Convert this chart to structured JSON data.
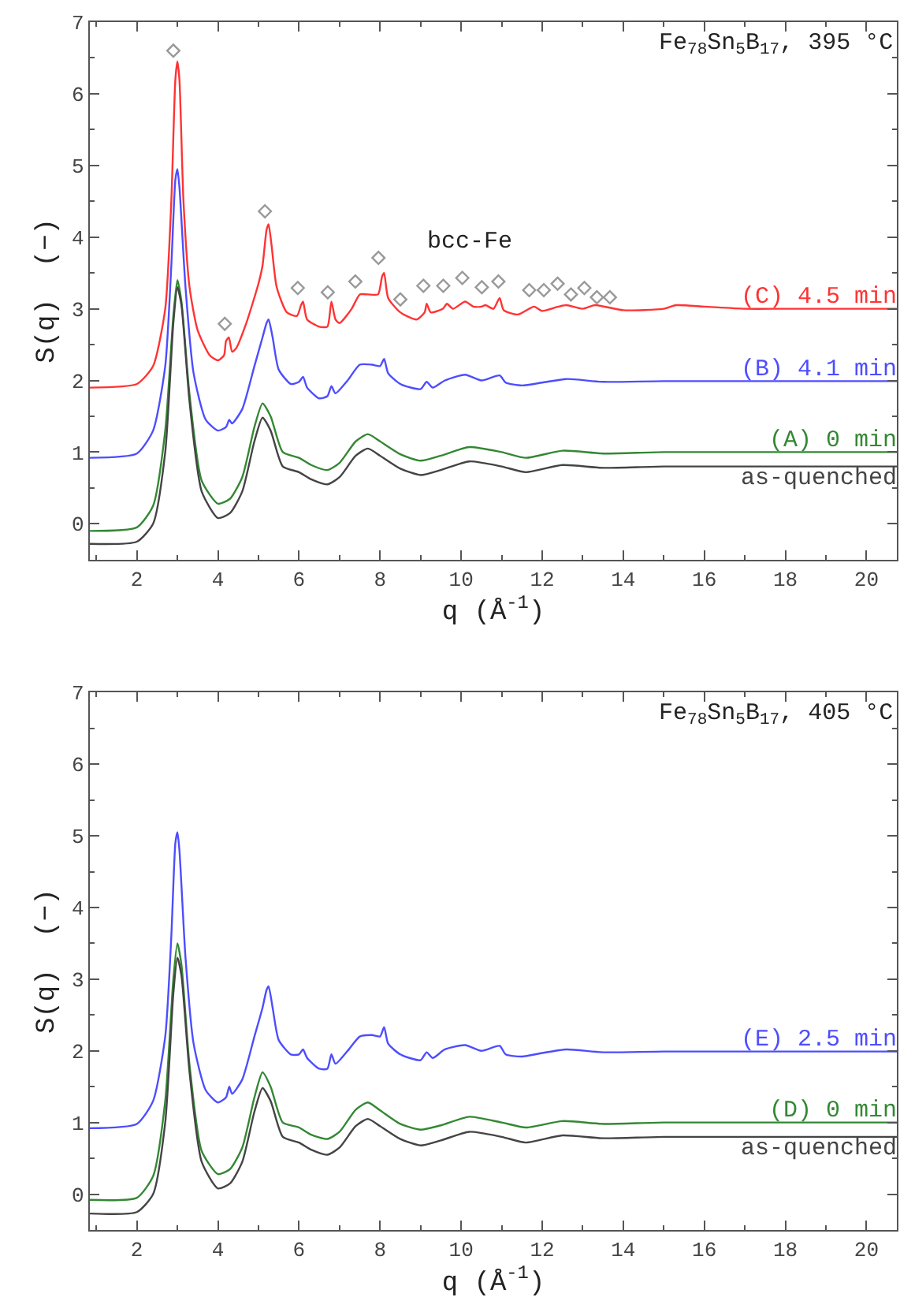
{
  "chart_data": [
    {
      "type": "line",
      "title": "Fe$_{78}$Sn$_{5}$B$_{17}$, 395 °C",
      "xlabel": "q (Å$^{-1}$)",
      "ylabel": "S(q)  (−)",
      "xlim": [
        0.84,
        20.75
      ],
      "ylim": [
        -0.5,
        7
      ],
      "xticks": [
        2,
        4,
        6,
        8,
        10,
        12,
        14,
        16,
        18,
        20
      ],
      "yticks": [
        0,
        1,
        2,
        3,
        4,
        5,
        6,
        7
      ],
      "legend": "right",
      "marker": "none",
      "line_style": "solid",
      "annotations": [
        "bcc-Fe"
      ],
      "series": [
        {
          "name": "(C) 4.5 min",
          "color": "#ff3333",
          "x": [
            0.84,
            2.0,
            2.4,
            2.7,
            2.85,
            2.95,
            3.0,
            3.05,
            3.15,
            3.3,
            3.5,
            3.8,
            4.0,
            4.15,
            4.2,
            4.27,
            4.35,
            4.45,
            4.7,
            5.0,
            5.1,
            5.2,
            5.25,
            5.32,
            5.45,
            5.7,
            5.95,
            6.05,
            6.1,
            6.2,
            6.5,
            6.7,
            6.8,
            6.9,
            7.0,
            7.3,
            7.5,
            7.7,
            7.95,
            8.05,
            8.1,
            8.2,
            8.5,
            8.9,
            9.1,
            9.15,
            9.25,
            9.55,
            9.65,
            9.8,
            10.1,
            10.3,
            10.5,
            10.6,
            10.8,
            10.95,
            11.05,
            11.4,
            11.8,
            12.0,
            12.4,
            12.6,
            13.0,
            13.3,
            14.0,
            15.0,
            15.3,
            16.0,
            17.0,
            18.0,
            20.75
          ],
          "values": [
            1.9,
            1.95,
            2.2,
            3.0,
            4.5,
            6.2,
            6.45,
            6.2,
            4.5,
            3.3,
            2.7,
            2.35,
            2.28,
            2.35,
            2.55,
            2.6,
            2.4,
            2.45,
            2.8,
            3.35,
            3.6,
            4.1,
            4.18,
            3.9,
            3.3,
            2.95,
            2.9,
            3.05,
            3.1,
            2.85,
            2.75,
            2.75,
            3.1,
            2.85,
            2.8,
            3.0,
            3.2,
            3.2,
            3.2,
            3.45,
            3.5,
            3.15,
            2.95,
            2.85,
            2.95,
            3.07,
            2.95,
            3.0,
            3.07,
            3.0,
            3.1,
            3.03,
            3.03,
            3.05,
            3.0,
            3.15,
            2.98,
            2.92,
            3.03,
            2.97,
            3.03,
            3.05,
            3.0,
            3.05,
            2.98,
            3.0,
            3.05,
            3.03,
            3.0,
            3.0,
            3.0
          ]
        },
        {
          "name": "(B) 4.1 min",
          "color": "#4d4dff",
          "x": [
            0.84,
            2.0,
            2.4,
            2.7,
            2.85,
            2.95,
            3.0,
            3.05,
            3.2,
            3.4,
            3.7,
            4.0,
            4.2,
            4.28,
            4.35,
            4.6,
            4.9,
            5.1,
            5.2,
            5.25,
            5.35,
            5.5,
            5.8,
            6.0,
            6.1,
            6.2,
            6.5,
            6.7,
            6.8,
            6.9,
            7.2,
            7.5,
            7.8,
            8.0,
            8.1,
            8.2,
            8.5,
            9.0,
            9.15,
            9.3,
            9.6,
            10.1,
            10.5,
            10.95,
            11.1,
            11.5,
            12.0,
            12.6,
            13.5,
            15.0,
            20.75
          ],
          "values": [
            0.92,
            0.98,
            1.3,
            2.2,
            3.6,
            4.8,
            4.95,
            4.7,
            3.3,
            2.1,
            1.45,
            1.3,
            1.35,
            1.45,
            1.4,
            1.6,
            2.2,
            2.6,
            2.8,
            2.85,
            2.6,
            2.15,
            1.95,
            1.98,
            2.05,
            1.9,
            1.75,
            1.78,
            1.92,
            1.82,
            2.0,
            2.22,
            2.22,
            2.2,
            2.3,
            2.1,
            1.95,
            1.88,
            1.98,
            1.9,
            2.0,
            2.08,
            2.0,
            2.07,
            1.97,
            1.93,
            1.97,
            2.02,
            1.98,
            1.99,
            1.99
          ]
        },
        {
          "name": "(A) 0 min",
          "color": "#338833",
          "x": [
            0.84,
            2.0,
            2.4,
            2.7,
            2.9,
            3.0,
            3.1,
            3.3,
            3.6,
            4.0,
            4.3,
            4.6,
            4.9,
            5.1,
            5.3,
            5.6,
            6.0,
            6.3,
            6.7,
            7.0,
            7.4,
            7.7,
            8.0,
            8.5,
            9.0,
            9.5,
            10.2,
            11.0,
            11.6,
            12.5,
            13.5,
            15.0,
            20.75
          ],
          "values": [
            -0.1,
            -0.05,
            0.25,
            1.3,
            2.9,
            3.4,
            3.1,
            1.8,
            0.6,
            0.28,
            0.35,
            0.65,
            1.35,
            1.68,
            1.5,
            1.0,
            0.92,
            0.82,
            0.75,
            0.85,
            1.15,
            1.25,
            1.15,
            0.97,
            0.88,
            0.95,
            1.07,
            1.0,
            0.92,
            1.02,
            0.98,
            1.0,
            1.0
          ]
        },
        {
          "name": "as-quenched",
          "color": "#444444",
          "x": [
            0.84,
            2.0,
            2.4,
            2.7,
            2.9,
            3.0,
            3.1,
            3.3,
            3.6,
            4.0,
            4.3,
            4.6,
            4.9,
            5.1,
            5.3,
            5.6,
            6.0,
            6.3,
            6.7,
            7.0,
            7.4,
            7.7,
            8.0,
            8.5,
            9.0,
            9.5,
            10.2,
            11.0,
            11.6,
            12.5,
            13.5,
            15.0,
            20.75
          ],
          "values": [
            -0.28,
            -0.25,
            0.0,
            1.0,
            2.8,
            3.3,
            3.05,
            1.7,
            0.45,
            0.08,
            0.15,
            0.45,
            1.15,
            1.48,
            1.3,
            0.8,
            0.72,
            0.62,
            0.55,
            0.65,
            0.95,
            1.05,
            0.95,
            0.77,
            0.68,
            0.75,
            0.87,
            0.8,
            0.72,
            0.82,
            0.78,
            0.8,
            0.8
          ]
        },
        {
          "type": "scatter",
          "marker": "diamond",
          "color": "#999999",
          "x": [
            2.9,
            4.17,
            5.16,
            5.97,
            6.71,
            7.39,
            7.96,
            8.5,
            9.07,
            9.56,
            10.03,
            10.51,
            10.92,
            11.68,
            12.04,
            12.38,
            12.71,
            13.04,
            13.35,
            13.67
          ],
          "values": [
            6.6,
            2.79,
            4.36,
            3.29,
            3.23,
            3.38,
            3.71,
            3.13,
            3.32,
            3.32,
            3.43,
            3.3,
            3.38,
            3.26,
            3.26,
            3.35,
            3.2,
            3.29,
            3.16,
            3.16
          ]
        }
      ]
    },
    {
      "type": "line",
      "title": "Fe$_{78}$Sn$_{5}$B$_{17}$, 405 °C",
      "xlabel": "q (Å$^{-1}$)",
      "ylabel": "S(q)  (−)",
      "xlim": [
        0.84,
        20.75
      ],
      "ylim": [
        -0.5,
        7
      ],
      "xticks": [
        2,
        4,
        6,
        8,
        10,
        12,
        14,
        16,
        18,
        20
      ],
      "yticks": [
        0,
        1,
        2,
        3,
        4,
        5,
        6,
        7
      ],
      "legend": "right",
      "marker": "none",
      "line_style": "solid",
      "series": [
        {
          "name": "(E) 2.5 min",
          "color": "#4d4dff",
          "x": [
            0.84,
            2.0,
            2.4,
            2.7,
            2.85,
            2.95,
            3.0,
            3.05,
            3.2,
            3.4,
            3.7,
            4.0,
            4.2,
            4.28,
            4.35,
            4.6,
            4.9,
            5.1,
            5.2,
            5.25,
            5.35,
            5.5,
            5.8,
            6.0,
            6.1,
            6.2,
            6.5,
            6.7,
            6.8,
            6.9,
            7.2,
            7.5,
            7.8,
            8.0,
            8.1,
            8.2,
            8.5,
            9.0,
            9.15,
            9.3,
            9.6,
            10.1,
            10.5,
            10.95,
            11.1,
            11.5,
            12.0,
            12.6,
            13.5,
            15.0,
            20.75
          ],
          "values": [
            0.92,
            0.98,
            1.3,
            2.2,
            3.6,
            4.9,
            5.05,
            4.8,
            3.3,
            2.1,
            1.45,
            1.28,
            1.35,
            1.5,
            1.4,
            1.6,
            2.2,
            2.6,
            2.85,
            2.9,
            2.6,
            2.15,
            1.95,
            1.95,
            2.02,
            1.9,
            1.75,
            1.75,
            1.95,
            1.82,
            2.0,
            2.2,
            2.22,
            2.2,
            2.33,
            2.1,
            1.95,
            1.87,
            1.98,
            1.9,
            2.02,
            2.08,
            2.0,
            2.07,
            1.95,
            1.92,
            1.97,
            2.02,
            1.98,
            1.99,
            1.99
          ]
        },
        {
          "name": "(D) 0 min",
          "color": "#338833",
          "x": [
            0.84,
            2.0,
            2.4,
            2.7,
            2.9,
            3.0,
            3.1,
            3.3,
            3.6,
            4.0,
            4.3,
            4.6,
            4.9,
            5.1,
            5.3,
            5.6,
            6.0,
            6.3,
            6.7,
            7.0,
            7.4,
            7.7,
            8.0,
            8.5,
            9.0,
            9.5,
            10.2,
            11.0,
            11.6,
            12.5,
            13.5,
            15.0,
            20.75
          ],
          "values": [
            -0.08,
            -0.05,
            0.25,
            1.3,
            3.0,
            3.5,
            3.2,
            1.8,
            0.6,
            0.28,
            0.35,
            0.65,
            1.35,
            1.7,
            1.5,
            1.0,
            0.93,
            0.83,
            0.77,
            0.87,
            1.18,
            1.28,
            1.17,
            0.98,
            0.9,
            0.96,
            1.08,
            1.0,
            0.93,
            1.02,
            0.98,
            1.0,
            1.0
          ]
        },
        {
          "name": "as-quenched",
          "color": "#444444",
          "x": [
            0.84,
            2.0,
            2.4,
            2.7,
            2.9,
            3.0,
            3.1,
            3.3,
            3.6,
            4.0,
            4.3,
            4.6,
            4.9,
            5.1,
            5.3,
            5.6,
            6.0,
            6.3,
            6.7,
            7.0,
            7.4,
            7.7,
            8.0,
            8.5,
            9.0,
            9.5,
            10.2,
            11.0,
            11.6,
            12.5,
            13.5,
            15.0,
            20.75
          ],
          "values": [
            -0.27,
            -0.25,
            0.0,
            1.0,
            2.8,
            3.3,
            3.05,
            1.7,
            0.45,
            0.08,
            0.15,
            0.45,
            1.15,
            1.48,
            1.3,
            0.8,
            0.72,
            0.62,
            0.55,
            0.65,
            0.95,
            1.05,
            0.95,
            0.77,
            0.68,
            0.75,
            0.87,
            0.8,
            0.72,
            0.82,
            0.78,
            0.8,
            0.8
          ]
        }
      ]
    }
  ]
}
